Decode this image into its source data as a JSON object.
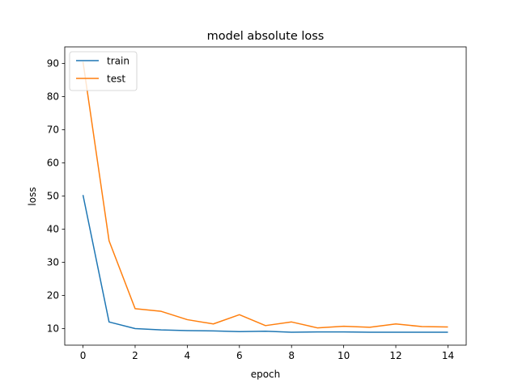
{
  "chart_data": {
    "type": "line",
    "title": "model absolute loss",
    "xlabel": "epoch",
    "ylabel": "loss",
    "x": [
      0,
      1,
      2,
      3,
      4,
      5,
      6,
      7,
      8,
      9,
      10,
      11,
      12,
      13,
      14
    ],
    "series": [
      {
        "name": "train",
        "color": "#1f77b4",
        "values": [
          50.3,
          12.0,
          10.0,
          9.6,
          9.4,
          9.3,
          9.1,
          9.2,
          8.9,
          9.0,
          9.0,
          8.9,
          8.9,
          8.9,
          8.9
        ]
      },
      {
        "name": "test",
        "color": "#ff7f0e",
        "values": [
          90.5,
          36.5,
          16.0,
          15.2,
          12.7,
          11.4,
          14.2,
          10.9,
          12.0,
          10.2,
          10.7,
          10.4,
          11.4,
          10.6,
          10.5
        ]
      }
    ],
    "xlim": [
      -0.7,
      14.7
    ],
    "ylim": [
      5.0,
      95.0
    ],
    "xticks": [
      0,
      2,
      4,
      6,
      8,
      10,
      12,
      14
    ],
    "xtick_labels": [
      "0",
      "2",
      "4",
      "6",
      "8",
      "10",
      "12",
      "14"
    ],
    "yticks": [
      10,
      20,
      30,
      40,
      50,
      60,
      70,
      80,
      90
    ],
    "ytick_labels": [
      "10",
      "20",
      "30",
      "40",
      "50",
      "60",
      "70",
      "80",
      "90"
    ],
    "grid": false,
    "legend_position": "upper-left"
  }
}
